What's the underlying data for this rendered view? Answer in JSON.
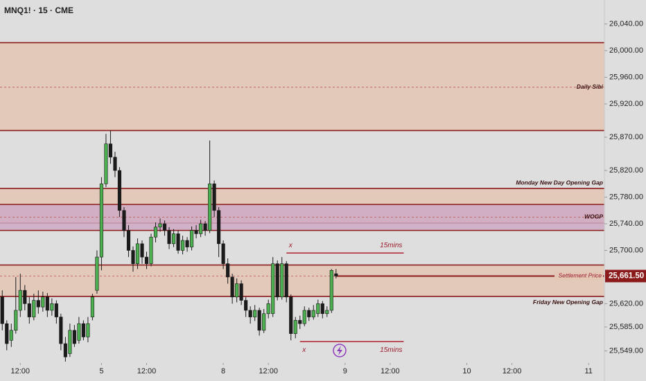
{
  "chart_data": {
    "type": "candlestick",
    "title": "MNQ1! · 15 · CME",
    "ylim": [
      25533,
      26076
    ],
    "xlim": [
      -0.5,
      133.5
    ],
    "yticks": [
      {
        "value": 26040,
        "label": "26,040.00"
      },
      {
        "value": 26000,
        "label": "26,000.00"
      },
      {
        "value": 25960,
        "label": "25,960.00"
      },
      {
        "value": 25920,
        "label": "25,920.00"
      },
      {
        "value": 25870,
        "label": "25,870.00"
      },
      {
        "value": 25820,
        "label": "25,820.00"
      },
      {
        "value": 25780,
        "label": "25,780.00"
      },
      {
        "value": 25740,
        "label": "25,740.00"
      },
      {
        "value": 25700,
        "label": "25,700.00"
      },
      {
        "value": 25620,
        "label": "25,620.00"
      },
      {
        "value": 25585,
        "label": "25,585.00"
      },
      {
        "value": 25549,
        "label": "25,549.00"
      }
    ],
    "xticks": [
      {
        "value": 4,
        "label": "12:00"
      },
      {
        "value": 22,
        "label": "5"
      },
      {
        "value": 32,
        "label": "12:00"
      },
      {
        "value": 49,
        "label": "8"
      },
      {
        "value": 59,
        "label": "12:00"
      },
      {
        "value": 76,
        "label": "9"
      },
      {
        "value": 86,
        "label": "12:00"
      },
      {
        "value": 103,
        "label": "10"
      },
      {
        "value": 113,
        "label": "12:00"
      },
      {
        "value": 130,
        "label": "11"
      }
    ],
    "up_color": "#4caf50",
    "down_color": "#1b1b1b",
    "open": [
      25630,
      25590,
      25565,
      25580,
      25610,
      25640,
      25620,
      25600,
      25625,
      25615,
      25630,
      25610,
      25620,
      25600,
      25560,
      25545,
      25580,
      25565,
      25590,
      25570,
      25600,
      25640,
      25690,
      25800,
      25860,
      25840,
      25820,
      25760,
      25730,
      25700,
      25680,
      25710,
      25690,
      25680,
      25720,
      25735,
      25740,
      25730,
      25710,
      25725,
      25700,
      25715,
      25705,
      25730,
      25725,
      25740,
      25730,
      25800,
      25760,
      25710,
      25680,
      25660,
      25630,
      25650,
      25625,
      25610,
      25600,
      25610,
      25580,
      25605,
      25605,
      25680,
      25630,
      25680,
      25630,
      25575,
      25595,
      25590,
      25610,
      25600,
      25605,
      25620,
      25605,
      25610,
      25665
    ],
    "high": [
      25640,
      25595,
      25590,
      25660,
      25665,
      25648,
      25630,
      25635,
      25640,
      25638,
      25636,
      25628,
      25625,
      25605,
      25570,
      25590,
      25588,
      25600,
      25595,
      25600,
      25635,
      25700,
      25810,
      25875,
      25880,
      25848,
      25825,
      25765,
      25738,
      25706,
      25718,
      25715,
      25698,
      25725,
      25742,
      25748,
      25745,
      25735,
      25732,
      25730,
      25722,
      25720,
      25736,
      25738,
      25746,
      25744,
      25865,
      25805,
      25765,
      25715,
      25688,
      25665,
      25658,
      25655,
      25630,
      25616,
      25618,
      25614,
      25612,
      25626,
      25690,
      25685,
      25690,
      25684,
      25634,
      25600,
      25602,
      25616,
      25614,
      25618,
      25626,
      25624,
      25616,
      25672,
      25672
    ],
    "low": [
      25580,
      25550,
      25555,
      25575,
      25600,
      25610,
      25590,
      25595,
      25605,
      25608,
      25600,
      25602,
      25590,
      25550,
      25533,
      25540,
      25555,
      25560,
      25565,
      25562,
      25595,
      25635,
      25670,
      25795,
      25830,
      25810,
      25750,
      25720,
      25690,
      25668,
      25672,
      25680,
      25672,
      25676,
      25712,
      25728,
      25722,
      25702,
      25705,
      25695,
      25694,
      25698,
      25700,
      25718,
      25720,
      25722,
      25726,
      25750,
      25690,
      25672,
      25650,
      25620,
      25622,
      25618,
      25600,
      25590,
      25594,
      25572,
      25576,
      25598,
      25600,
      25625,
      25626,
      25622,
      25565,
      25568,
      25582,
      25586,
      25594,
      25596,
      25600,
      25598,
      25600,
      25606,
      25658
    ],
    "close": [
      25590,
      25560,
      25580,
      25610,
      25640,
      25620,
      25600,
      25625,
      25615,
      25630,
      25610,
      25620,
      25600,
      25560,
      25540,
      25580,
      25560,
      25590,
      25570,
      25590,
      25630,
      25690,
      25800,
      25860,
      25840,
      25820,
      25760,
      25730,
      25700,
      25680,
      25710,
      25690,
      25680,
      25720,
      25735,
      25740,
      25730,
      25710,
      25725,
      25700,
      25715,
      25705,
      25730,
      25725,
      25740,
      25730,
      25800,
      25760,
      25710,
      25680,
      25660,
      25630,
      25650,
      25625,
      25610,
      25600,
      25610,
      25580,
      25605,
      25620,
      25680,
      25630,
      25680,
      25630,
      25575,
      25595,
      25590,
      25610,
      25600,
      25610,
      25620,
      25605,
      25610,
      25670,
      25661.5
    ],
    "zones": [
      {
        "label": "Daily Sibi",
        "top": 26012,
        "bottom": 25880,
        "mid": 25945,
        "label_at": "mid",
        "fill": "#e3c6b4"
      },
      {
        "label": "Monday New Day Opening Gap",
        "top": 25793,
        "bottom": 25741,
        "label_at": "above",
        "fill": "#e3c6b4"
      },
      {
        "label": "WOGP",
        "top": 25769,
        "bottom": 25730,
        "mid": 25750,
        "label_at": "mid",
        "fill": "#cfa9c4"
      },
      {
        "label": "Friday New Opening Gap",
        "top": 25678,
        "bottom": 25631,
        "label_at": "below",
        "fill": "#e3c6b4"
      }
    ],
    "line_color": "#8b1a1a",
    "settlement": {
      "label": "Settlement Price",
      "value": 25661.5,
      "start": 74
    },
    "current": {
      "value": 25661.5,
      "label": "25,661.50"
    },
    "levels": [
      {
        "label": "15mins",
        "marker": "x",
        "value": 25696,
        "start": 63,
        "end": 89
      },
      {
        "label": "15mins",
        "marker": "x",
        "value": 25563,
        "start": 66,
        "end": 89
      }
    ]
  }
}
